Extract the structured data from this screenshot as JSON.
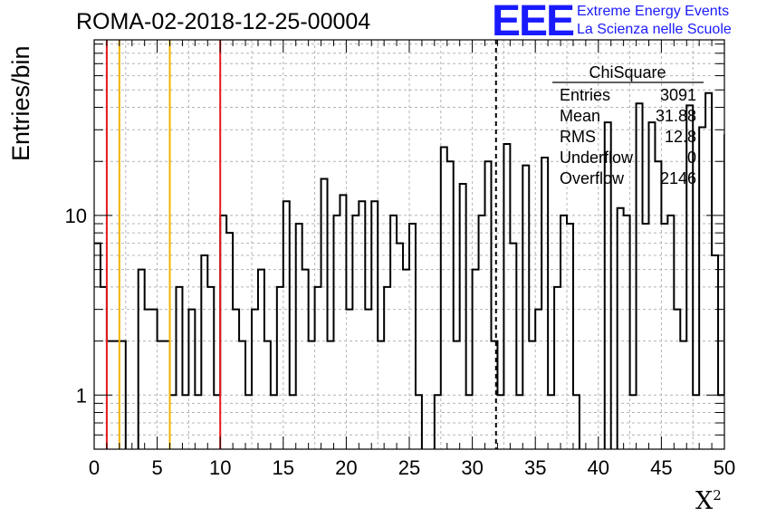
{
  "header": {
    "title": "ROMA-02-2018-12-25-00004",
    "logo_mark": "EEE",
    "logo_line1": "Extreme Energy Events",
    "logo_line2": "La Scienza nelle Scuole"
  },
  "axes": {
    "xlabel_base": "X",
    "xlabel_sup": "2",
    "ylabel": "Entries/bin"
  },
  "stats": {
    "title": "ChiSquare",
    "rows": [
      {
        "label": "Entries",
        "value": "3091"
      },
      {
        "label": "Mean",
        "value": "31.88"
      },
      {
        "label": "RMS",
        "value": "12.8"
      },
      {
        "label": "Underflow",
        "value": "0"
      },
      {
        "label": "Overflow",
        "value": "2146"
      }
    ]
  },
  "colors": {
    "red_line": "#e41a1c",
    "orange_line": "#f0b400",
    "hist": "#000000",
    "grid": "#b4b4b4"
  },
  "chart_data": {
    "type": "histogram",
    "xlim": [
      0,
      50
    ],
    "ylim": [
      0.5,
      95
    ],
    "log_y": true,
    "grid": true,
    "bin_width": 0.5,
    "x_ticks": [
      0,
      5,
      10,
      15,
      20,
      25,
      30,
      35,
      40,
      45,
      50
    ],
    "y_ticks": [
      1,
      10
    ],
    "values": [
      7,
      4,
      2,
      2,
      2,
      0,
      0,
      5,
      3,
      3,
      2,
      2,
      1,
      4,
      1,
      3,
      1,
      6,
      4,
      1,
      10,
      8,
      3,
      2,
      1,
      3,
      5,
      2,
      1,
      4,
      12,
      1,
      9,
      5,
      2,
      4,
      16,
      2,
      10,
      13,
      3,
      10,
      12,
      3,
      12,
      2,
      4,
      10,
      7,
      5,
      9,
      1,
      0,
      0,
      1,
      24,
      20,
      2,
      15,
      1,
      5,
      10,
      20,
      2,
      1,
      25,
      7,
      1,
      19,
      2,
      3,
      21,
      1,
      4,
      10,
      9,
      1,
      0,
      0,
      0,
      0,
      33,
      0,
      11,
      10,
      1,
      42,
      9,
      33,
      20,
      9,
      10,
      3,
      2,
      41,
      1,
      31,
      48,
      6,
      1,
      28,
      13,
      41,
      1,
      7,
      48,
      0,
      0,
      0,
      0,
      0,
      22,
      21,
      1,
      1,
      0,
      0,
      1,
      0,
      0
    ],
    "vlines": [
      {
        "x": 1,
        "color": "red"
      },
      {
        "x": 2,
        "color": "orange"
      },
      {
        "x": 6,
        "color": "orange"
      },
      {
        "x": 10,
        "color": "red"
      },
      {
        "x": 31.88,
        "color": "black",
        "style": "dashed"
      }
    ]
  }
}
